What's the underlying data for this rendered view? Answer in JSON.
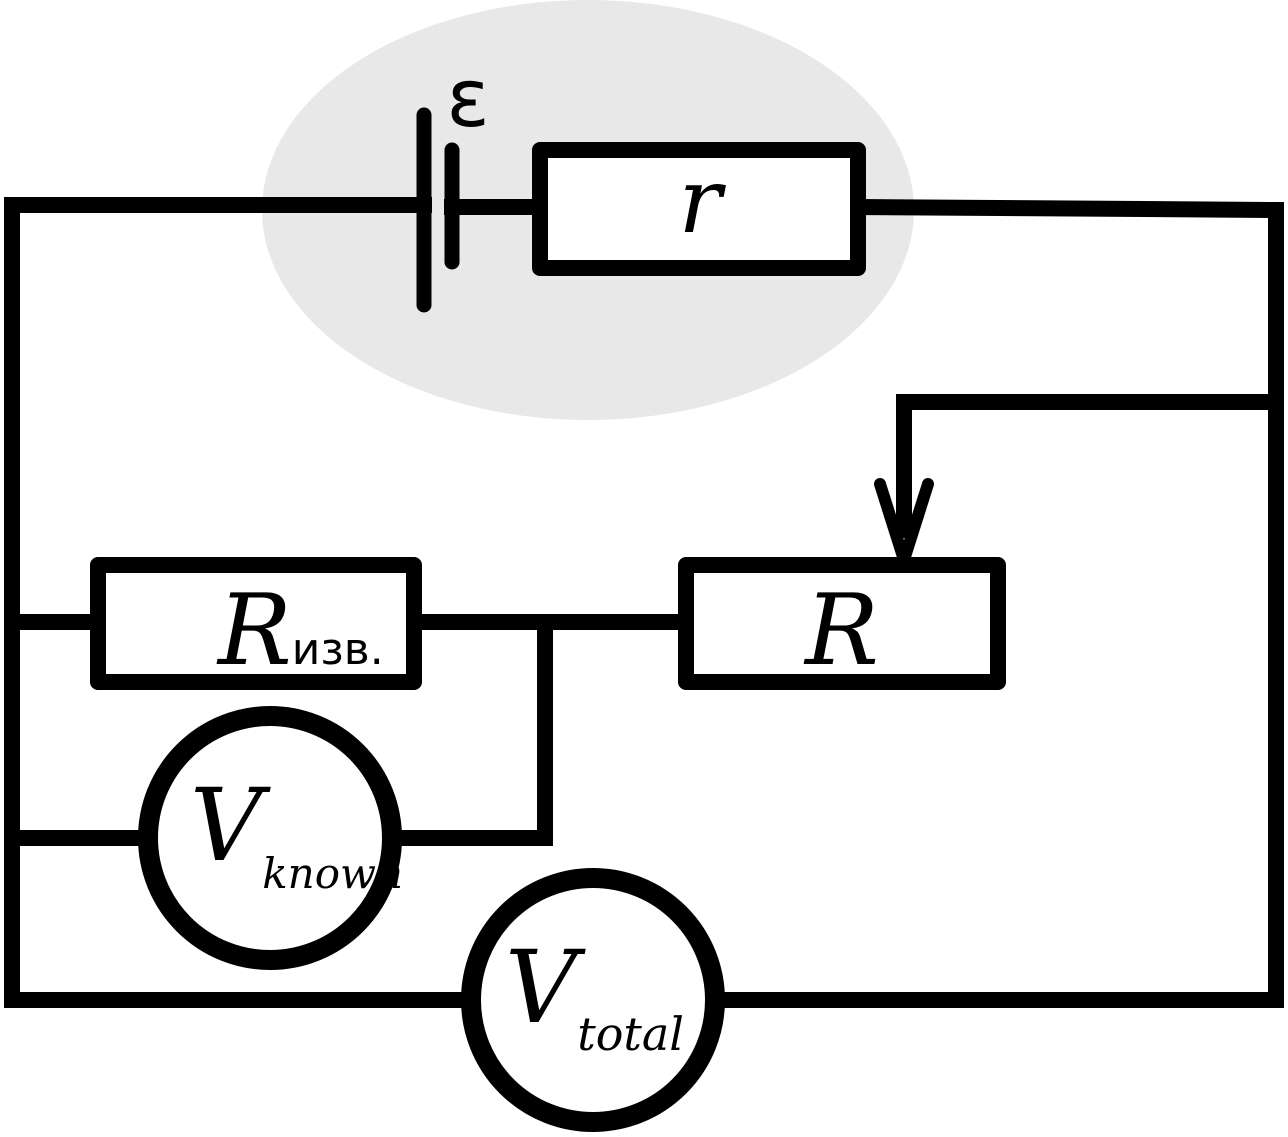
{
  "labels": {
    "emf": "ε",
    "internal_resistance": "r",
    "known_resistor_main": "R",
    "known_resistor_sub": "изв.",
    "variable_resistor": "R",
    "voltmeter_known_main": "V",
    "voltmeter_known_sub": "known",
    "voltmeter_total_main": "V",
    "voltmeter_total_sub": "total"
  },
  "colors": {
    "line": "#000000",
    "source_highlight": "#e8e8e8",
    "background": "#ffffff"
  }
}
